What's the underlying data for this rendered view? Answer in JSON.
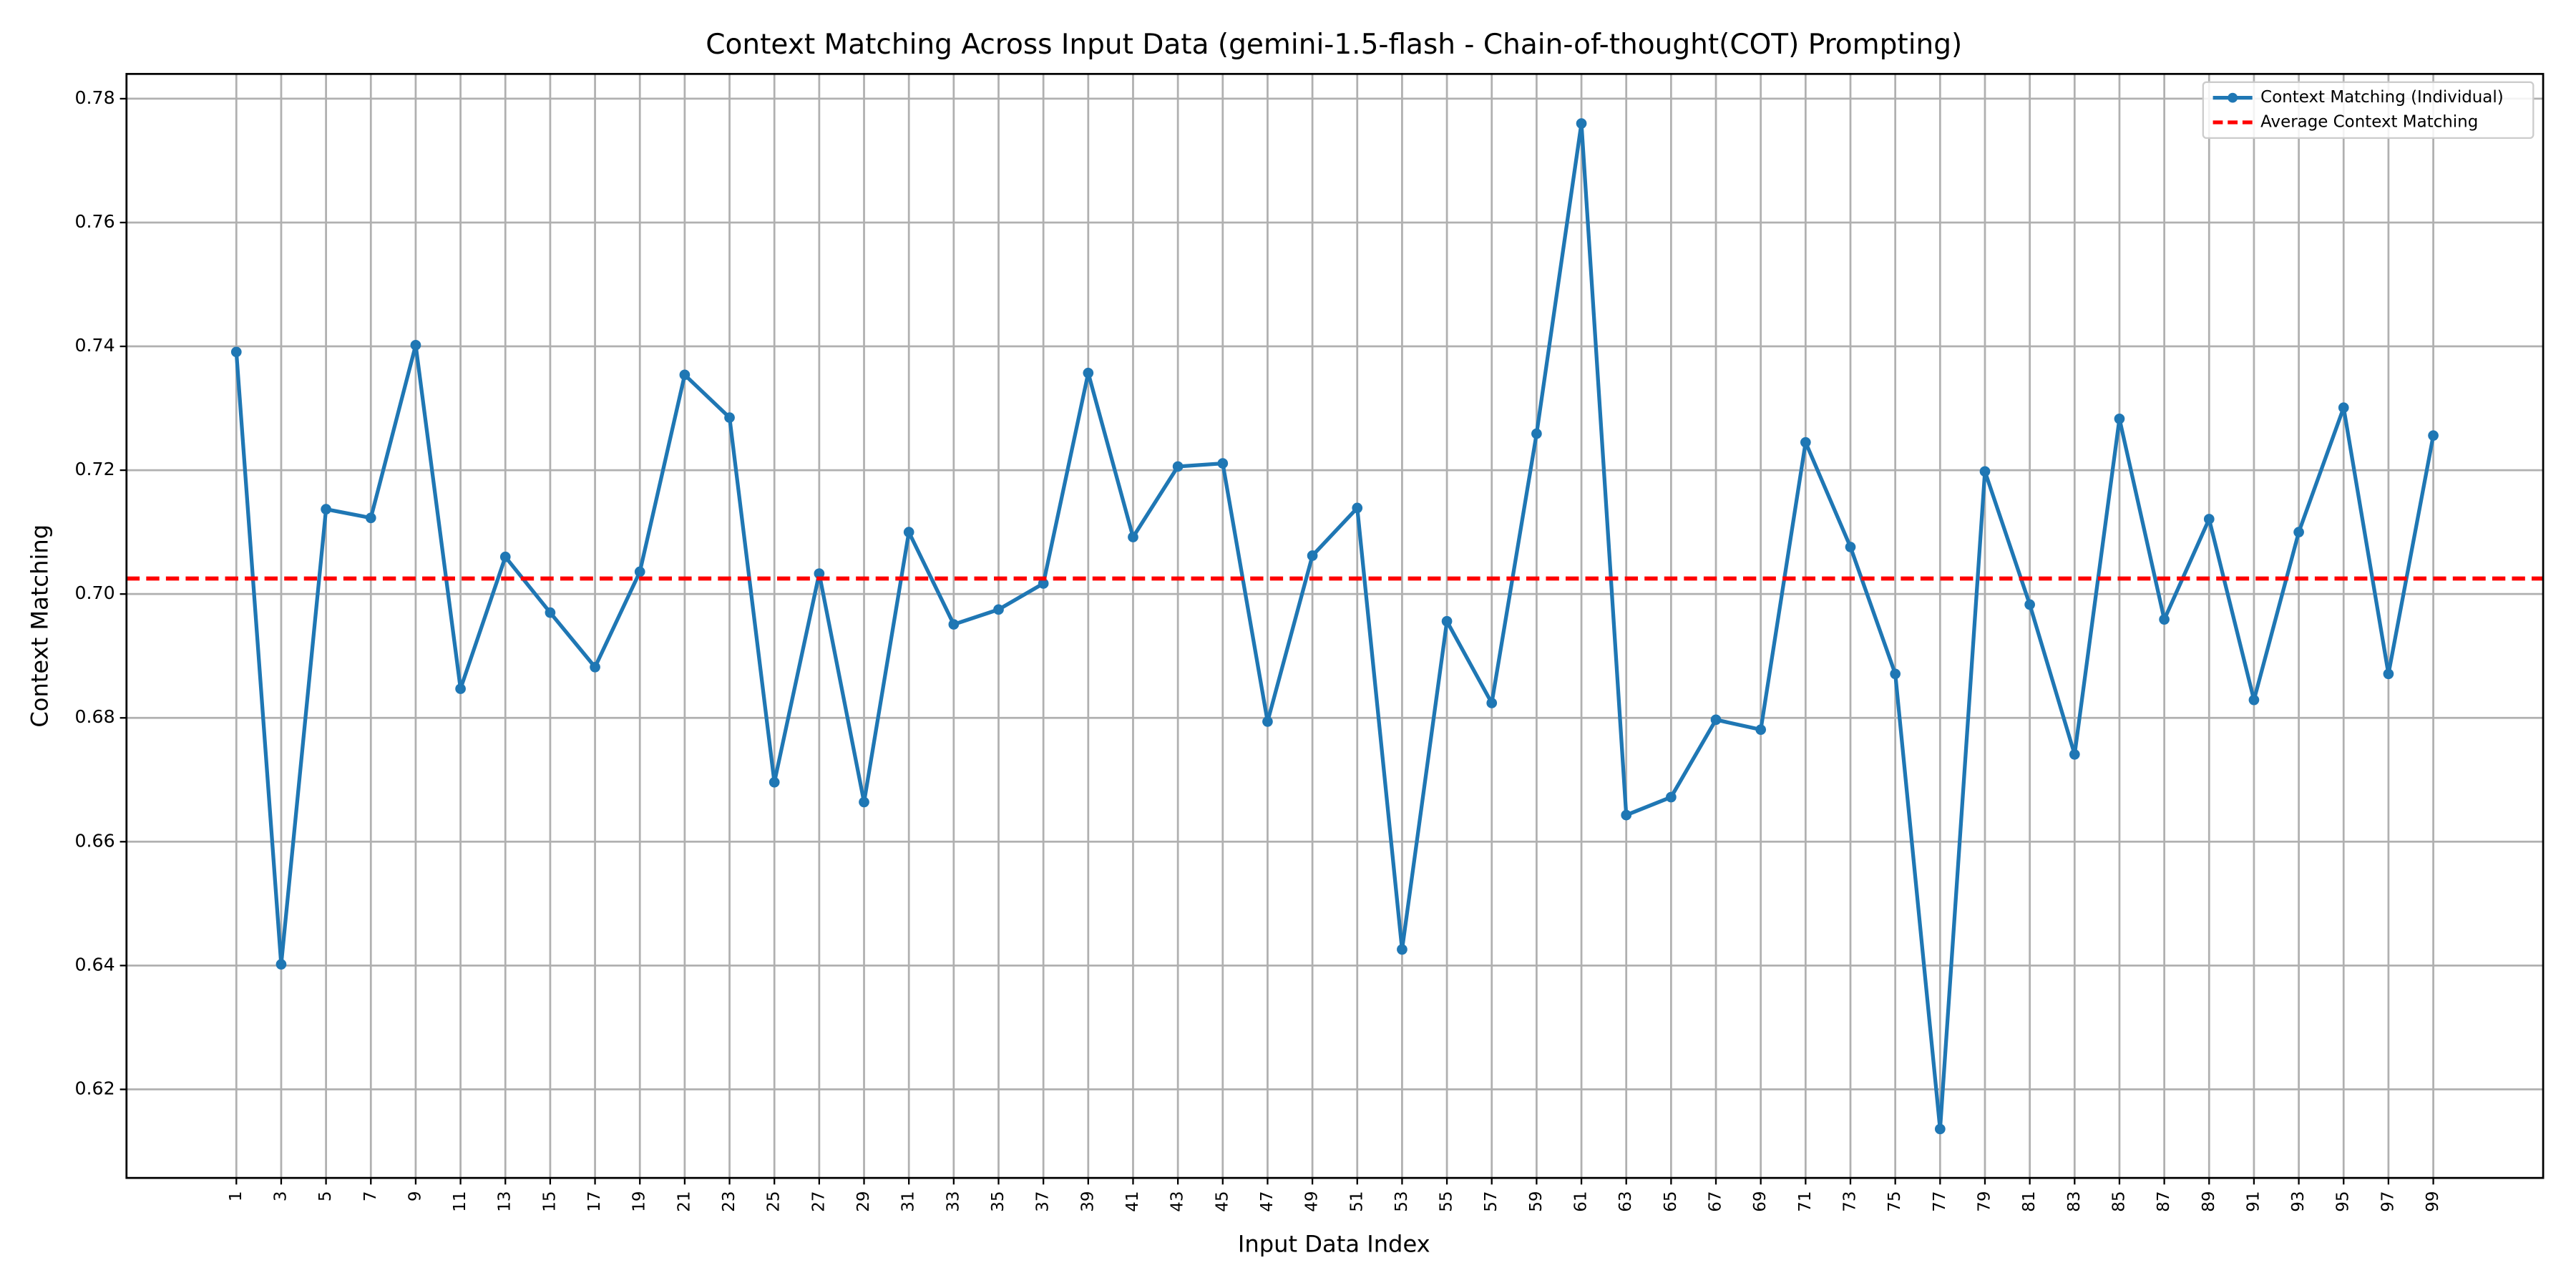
{
  "chart_data": {
    "type": "line",
    "title": "Context Matching Across Input Data (gemini-1.5-flash - Chain-of-thought(COT) Prompting)",
    "xlabel": "Input Data Index",
    "ylabel": "Context Matching",
    "x": [
      1,
      3,
      5,
      7,
      9,
      11,
      13,
      15,
      17,
      19,
      21,
      23,
      25,
      27,
      29,
      31,
      33,
      35,
      37,
      39,
      41,
      43,
      45,
      47,
      49,
      51,
      53,
      55,
      57,
      59,
      61,
      63,
      65,
      67,
      69,
      71,
      73,
      75,
      77,
      79,
      81,
      83,
      85,
      87,
      89,
      91,
      93,
      95,
      97,
      99
    ],
    "series": [
      {
        "name": "Context Matching (Individual)",
        "color": "#1f77b4",
        "values": [
          0.7391,
          0.6402,
          0.7137,
          0.7123,
          0.7402,
          0.6847,
          0.706,
          0.697,
          0.6882,
          0.7036,
          0.7354,
          0.7285,
          0.6696,
          0.7033,
          0.6664,
          0.71,
          0.6951,
          0.6975,
          0.7017,
          0.7357,
          0.7092,
          0.7206,
          0.7211,
          0.6794,
          0.7062,
          0.7139,
          0.6426,
          0.6956,
          0.6824,
          0.7259,
          0.776,
          0.6643,
          0.6672,
          0.6797,
          0.6781,
          0.7245,
          0.7076,
          0.6871,
          0.6136,
          0.7198,
          0.6983,
          0.6741,
          0.7283,
          0.6959,
          0.7121,
          0.6829,
          0.71,
          0.7301,
          0.6871,
          0.7256
        ]
      }
    ],
    "average_line": {
      "name": "Average Context Matching",
      "color": "#ff0000",
      "value": 0.7025,
      "dashed": true
    },
    "xlim": [
      -3.9,
      103.9
    ],
    "xticks": [
      1,
      3,
      5,
      7,
      9,
      11,
      13,
      15,
      17,
      19,
      21,
      23,
      25,
      27,
      29,
      31,
      33,
      35,
      37,
      39,
      41,
      43,
      45,
      47,
      49,
      51,
      53,
      55,
      57,
      59,
      61,
      63,
      65,
      67,
      69,
      71,
      73,
      75,
      77,
      79,
      81,
      83,
      85,
      87,
      89,
      91,
      93,
      95,
      97,
      99
    ],
    "ylim": [
      0.6057,
      0.784
    ],
    "yticks": [
      0.62,
      0.64,
      0.66,
      0.68,
      {
        "value": 0.7,
        "label": "0.70"
      },
      0.72,
      0.74,
      0.76,
      0.78
    ],
    "grid": true,
    "legend": "upper right"
  }
}
